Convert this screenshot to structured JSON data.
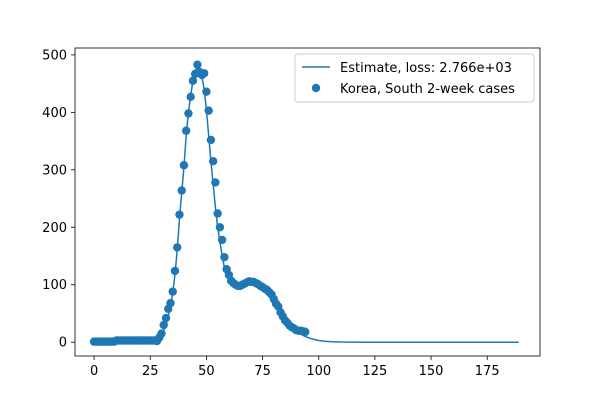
{
  "chart_data": {
    "type": "line",
    "title": "",
    "xlabel": "",
    "ylabel": "",
    "xlim": [
      -8.5,
      198.5
    ],
    "ylim": [
      -24,
      512
    ],
    "grid": false,
    "legend_position": "top-right",
    "xticks": [
      0,
      25,
      50,
      75,
      100,
      125,
      150,
      175
    ],
    "yticks": [
      0,
      100,
      200,
      300,
      400,
      500
    ],
    "colors": {
      "series": "#1f77b4"
    },
    "series": [
      {
        "name": "Estimate, loss: 2.766e+03",
        "kind": "line",
        "x": [
          0,
          5,
          10,
          15,
          20,
          25,
          28,
          30,
          32,
          34,
          35,
          36,
          37,
          38,
          39,
          40,
          41,
          42,
          43,
          44,
          45,
          46,
          47,
          48,
          49,
          50,
          51,
          52,
          53,
          54,
          55,
          56,
          57,
          58,
          59,
          60,
          62,
          64,
          66,
          68,
          70,
          72,
          74,
          76,
          78,
          80,
          82,
          84,
          86,
          88,
          90,
          92,
          94,
          96,
          98,
          100,
          103,
          106,
          110,
          115,
          120,
          130,
          150,
          170,
          189
        ],
        "y": [
          0,
          0,
          1,
          1,
          1,
          2,
          3,
          10,
          30,
          62,
          85,
          118,
          160,
          215,
          260,
          305,
          360,
          400,
          430,
          455,
          472,
          480,
          474,
          462,
          440,
          405,
          360,
          315,
          275,
          235,
          200,
          175,
          150,
          130,
          118,
          108,
          100,
          97,
          99,
          103,
          104,
          102,
          98,
          94,
          88,
          78,
          64,
          50,
          38,
          28,
          20,
          14,
          10,
          7,
          5,
          3,
          1.5,
          0.8,
          0.3,
          0.1,
          0,
          0,
          0,
          0,
          0
        ]
      },
      {
        "name": "Korea, South 2-week cases",
        "kind": "scatter",
        "x": [
          0,
          1,
          2,
          3,
          4,
          5,
          6,
          7,
          8,
          9,
          10,
          11,
          12,
          13,
          14,
          15,
          16,
          17,
          18,
          19,
          20,
          21,
          22,
          23,
          24,
          25,
          26,
          27,
          28,
          29,
          30,
          31,
          32,
          33,
          34,
          35,
          36,
          37,
          38,
          39,
          40,
          41,
          42,
          43,
          44,
          45,
          46,
          47,
          48,
          49,
          50,
          51,
          52,
          53,
          54,
          55,
          56,
          57,
          58,
          59,
          60,
          61,
          62,
          63,
          64,
          65,
          66,
          67,
          68,
          69,
          70,
          71,
          72,
          73,
          74,
          75,
          76,
          77,
          78,
          79,
          80,
          81,
          82,
          83,
          84,
          85,
          86,
          87,
          88,
          89,
          90,
          91,
          92,
          93,
          94
        ],
        "y": [
          1,
          1,
          1,
          1,
          1,
          1,
          1,
          1,
          1,
          1,
          3,
          3,
          3,
          3,
          3,
          3,
          3,
          3,
          3,
          3,
          3,
          3,
          3,
          3,
          3,
          3,
          3,
          3,
          2,
          8,
          15,
          30,
          42,
          58,
          68,
          88,
          124,
          165,
          222,
          264,
          308,
          368,
          398,
          427,
          455,
          467,
          483,
          470,
          465,
          468,
          436,
          403,
          352,
          315,
          278,
          224,
          200,
          178,
          148,
          127,
          117,
          107,
          103,
          100,
          98,
          98,
          100,
          102,
          104,
          106,
          105,
          105,
          103,
          101,
          98,
          96,
          93,
          91,
          87,
          83,
          75,
          67,
          62,
          52,
          45,
          38,
          34,
          29,
          26,
          24,
          21,
          20,
          20,
          19,
          18
        ]
      }
    ]
  }
}
